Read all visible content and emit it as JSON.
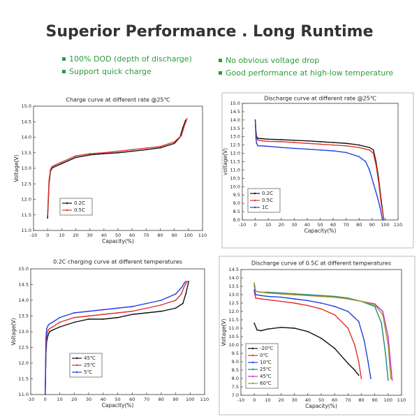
{
  "header": {
    "title": "Superior Performance . Long Runtime",
    "features": [
      "100% DOD (depth of discharge)",
      "Support quick charge",
      "No obvious voltage drop",
      "Good performance at high-low temperature"
    ]
  },
  "chart_data": [
    {
      "type": "line",
      "title": "Charge curve at different rate @25℃",
      "x_label": "Capacity(%)",
      "y_label": "Voltage(V)",
      "xlim": [
        -10,
        110
      ],
      "xticks": [
        -10,
        0,
        10,
        20,
        30,
        40,
        50,
        60,
        70,
        80,
        90,
        100,
        110
      ],
      "ylim": [
        11.0,
        15.0
      ],
      "yticks": [
        {
          "value": 11.0,
          "label": "11.0"
        },
        {
          "value": 11.5,
          "label": "11.5"
        },
        {
          "value": 12.0,
          "label": "12.0"
        },
        {
          "value": 12.5,
          "label": "12.5"
        },
        {
          "value": 13.0,
          "label": "13.0"
        },
        {
          "value": 13.5,
          "label": "13.5"
        },
        {
          "value": 14.0,
          "label": "14.0"
        },
        {
          "value": 14.5,
          "label": "14.5"
        },
        {
          "value": 15.0,
          "label": "15.0"
        }
      ],
      "series": [
        {
          "name": "0.2C",
          "color": "#111111",
          "x": [
            0,
            1,
            2,
            3,
            5,
            10,
            20,
            30,
            40,
            50,
            60,
            70,
            80,
            90,
            94,
            96,
            98
          ],
          "values": [
            11.4,
            12.5,
            12.9,
            13.0,
            13.05,
            13.15,
            13.35,
            13.43,
            13.47,
            13.5,
            13.55,
            13.6,
            13.66,
            13.8,
            14.0,
            14.3,
            14.55
          ]
        },
        {
          "name": "0.5C",
          "color": "#e0302a",
          "x": [
            0,
            1,
            2,
            3,
            5,
            10,
            20,
            30,
            40,
            50,
            60,
            70,
            80,
            90,
            95,
            97,
            99
          ],
          "values": [
            11.5,
            12.6,
            12.95,
            13.05,
            13.1,
            13.2,
            13.4,
            13.47,
            13.5,
            13.55,
            13.6,
            13.65,
            13.7,
            13.85,
            14.05,
            14.35,
            14.6
          ]
        }
      ]
    },
    {
      "type": "line",
      "title": "Discharge curve at different rate @25℃",
      "x_label": "Capacity(%)",
      "y_label": "voltage(V)",
      "xlim": [
        -10,
        110
      ],
      "xticks": [
        -10,
        0,
        10,
        20,
        30,
        40,
        50,
        60,
        70,
        80,
        90,
        100,
        110
      ],
      "ylim": [
        8.0,
        15.0
      ],
      "yticks": [
        {
          "value": 8.0,
          "label": "8.0"
        },
        {
          "value": 8.5,
          "label": "8.5"
        },
        {
          "value": 9.0,
          "label": "9.0"
        },
        {
          "value": 9.5,
          "label": "9.5"
        },
        {
          "value": 10.0,
          "label": "10.0"
        },
        {
          "value": 10.5,
          "label": "10.5"
        },
        {
          "value": 11.0,
          "label": "11.0"
        },
        {
          "value": 11.5,
          "label": "11.5"
        },
        {
          "value": 12.0,
          "label": "12.0"
        },
        {
          "value": 12.5,
          "label": "12.5"
        },
        {
          "value": 13.0,
          "label": "13.0"
        },
        {
          "value": 13.5,
          "label": "13.5"
        },
        {
          "value": 14.0,
          "label": "14.0"
        },
        {
          "value": 14.5,
          "label": "14.5"
        },
        {
          "value": 15.0,
          "label": "15.0"
        }
      ],
      "series": [
        {
          "name": "0.2C",
          "color": "#111111",
          "x": [
            0,
            0.5,
            1,
            2,
            5,
            10,
            20,
            30,
            40,
            50,
            60,
            70,
            80,
            88,
            91,
            93,
            95,
            97,
            99
          ],
          "values": [
            14.0,
            13.3,
            13.0,
            12.9,
            12.88,
            12.85,
            12.82,
            12.78,
            12.75,
            12.7,
            12.65,
            12.6,
            12.5,
            12.35,
            12.2,
            11.5,
            10.5,
            9.2,
            8.0
          ]
        },
        {
          "name": "0.5C",
          "color": "#e0302a",
          "x": [
            0,
            0.5,
            1,
            2,
            5,
            10,
            20,
            30,
            40,
            50,
            60,
            70,
            80,
            88,
            91,
            93,
            95,
            97,
            99
          ],
          "values": [
            14.0,
            13.1,
            12.9,
            12.8,
            12.75,
            12.72,
            12.7,
            12.65,
            12.6,
            12.55,
            12.5,
            12.45,
            12.35,
            12.2,
            12.0,
            11.3,
            10.3,
            9.0,
            8.0
          ]
        },
        {
          "name": "1C",
          "color": "#2040e0",
          "x": [
            0,
            0.5,
            1,
            2,
            5,
            10,
            20,
            30,
            40,
            50,
            60,
            70,
            80,
            85,
            88,
            91,
            94,
            96,
            98
          ],
          "values": [
            14.0,
            12.9,
            12.6,
            12.45,
            12.45,
            12.42,
            12.35,
            12.3,
            12.25,
            12.2,
            12.15,
            12.05,
            11.8,
            11.5,
            11.0,
            10.2,
            9.4,
            8.8,
            8.0
          ]
        }
      ]
    },
    {
      "type": "line",
      "title": "0.2C charging curve at different temperatures",
      "x_label": "Capacity(%)",
      "y_label": "Voltage(V)",
      "xlim": [
        -10,
        110
      ],
      "xticks": [
        -10,
        0,
        10,
        20,
        30,
        40,
        50,
        60,
        70,
        80,
        90,
        100,
        110
      ],
      "ylim": [
        11.0,
        15.0
      ],
      "yticks": [
        {
          "value": 11.0,
          "label": "11.0"
        },
        {
          "value": 11.5,
          "label": "11.5"
        },
        {
          "value": 12.0,
          "label": "12.0"
        },
        {
          "value": 12.5,
          "label": "12.5"
        },
        {
          "value": 13.0,
          "label": "13.0"
        },
        {
          "value": 13.5,
          "label": "13.5"
        },
        {
          "value": 14.0,
          "label": "14.0"
        },
        {
          "value": 14.5,
          "label": "14.5"
        },
        {
          "value": 15.0,
          "label": "15.0"
        }
      ],
      "series": [
        {
          "name": "45℃",
          "color": "#111111",
          "x": [
            0,
            0.5,
            1,
            2,
            3,
            5,
            10,
            20,
            30,
            40,
            50,
            60,
            70,
            80,
            90,
            95,
            97,
            99
          ],
          "values": [
            11.0,
            12.3,
            12.7,
            12.9,
            13.0,
            13.05,
            13.15,
            13.3,
            13.4,
            13.4,
            13.45,
            13.55,
            13.6,
            13.65,
            13.75,
            13.9,
            14.2,
            14.6
          ]
        },
        {
          "name": "25℃",
          "color": "#e0302a",
          "x": [
            0,
            0.5,
            1,
            2,
            3,
            5,
            10,
            20,
            30,
            40,
            50,
            60,
            70,
            80,
            90,
            94,
            96,
            98
          ],
          "values": [
            11.0,
            12.5,
            12.9,
            13.05,
            13.1,
            13.15,
            13.3,
            13.45,
            13.5,
            13.55,
            13.6,
            13.65,
            13.75,
            13.85,
            14.0,
            14.2,
            14.45,
            14.6
          ]
        },
        {
          "name": "5℃",
          "color": "#2040e0",
          "x": [
            0,
            0.5,
            1,
            2,
            3,
            5,
            10,
            20,
            30,
            40,
            50,
            60,
            70,
            80,
            90,
            94,
            96,
            97
          ],
          "values": [
            11.0,
            12.8,
            13.1,
            13.2,
            13.25,
            13.3,
            13.45,
            13.6,
            13.65,
            13.7,
            13.75,
            13.8,
            13.9,
            14.0,
            14.2,
            14.4,
            14.55,
            14.6
          ]
        }
      ]
    },
    {
      "type": "line",
      "title": "Discharge curve of 0.5C at different temperatures",
      "x_label": "Capacity(%)",
      "y_label": "Voltage(V)",
      "xlim": [
        -10,
        110
      ],
      "xticks": [
        -10,
        0,
        10,
        20,
        30,
        40,
        50,
        60,
        70,
        80,
        90,
        100,
        110
      ],
      "ylim": [
        7.0,
        14.5
      ],
      "yticks": [
        {
          "value": 7.0,
          "label": "7.0"
        },
        {
          "value": 7.5,
          "label": "7.5"
        },
        {
          "value": 8.0,
          "label": "8.0"
        },
        {
          "value": 8.5,
          "label": "8.5"
        },
        {
          "value": 9.0,
          "label": "9.0"
        },
        {
          "value": 9.5,
          "label": "9.5"
        },
        {
          "value": 10.0,
          "label": "10.0"
        },
        {
          "value": 10.5,
          "label": "10.5"
        },
        {
          "value": 11.0,
          "label": "11.0"
        },
        {
          "value": 11.5,
          "label": "11.5"
        },
        {
          "value": 12.0,
          "label": "12.0"
        },
        {
          "value": 12.5,
          "label": "12.5"
        },
        {
          "value": 13.0,
          "label": "13.0"
        },
        {
          "value": 13.5,
          "label": "13.5"
        },
        {
          "value": 14.0,
          "label": "14.0"
        },
        {
          "value": 14.5,
          "label": "14.5"
        }
      ],
      "series": [
        {
          "name": "-20℃",
          "color": "#111111",
          "x": [
            0,
            2,
            5,
            10,
            20,
            30,
            40,
            50,
            60,
            70,
            75,
            78
          ],
          "values": [
            11.3,
            10.9,
            10.85,
            10.95,
            11.05,
            11.0,
            10.8,
            10.4,
            9.8,
            8.9,
            8.5,
            8.2
          ]
        },
        {
          "name": "0℃",
          "color": "#e0302a",
          "x": [
            0,
            1,
            5,
            10,
            20,
            30,
            40,
            50,
            60,
            70,
            75,
            78,
            80
          ],
          "values": [
            13.2,
            12.8,
            12.75,
            12.7,
            12.6,
            12.5,
            12.35,
            12.15,
            11.8,
            11.0,
            10.0,
            9.0,
            8.0
          ]
        },
        {
          "name": "10℃",
          "color": "#2040e0",
          "x": [
            0,
            1,
            5,
            10,
            20,
            30,
            40,
            50,
            60,
            70,
            78,
            82,
            85,
            87
          ],
          "values": [
            13.3,
            13.0,
            12.95,
            12.9,
            12.85,
            12.75,
            12.65,
            12.5,
            12.3,
            12.0,
            11.4,
            10.3,
            9.0,
            8.0
          ]
        },
        {
          "name": "25℃",
          "color": "#1a8a7a",
          "x": [
            0,
            1,
            5,
            10,
            20,
            30,
            40,
            50,
            60,
            70,
            80,
            90,
            95,
            98,
            100
          ],
          "values": [
            13.5,
            13.2,
            13.15,
            13.15,
            13.1,
            13.05,
            13.0,
            12.95,
            12.9,
            12.8,
            12.6,
            12.3,
            11.3,
            9.5,
            7.9
          ]
        },
        {
          "name": "45℃",
          "color": "#d030d0",
          "x": [
            0,
            1,
            5,
            10,
            20,
            30,
            40,
            50,
            60,
            70,
            80,
            90,
            96,
            100,
            103
          ],
          "values": [
            13.6,
            13.2,
            13.15,
            13.1,
            13.05,
            13.0,
            12.95,
            12.9,
            12.85,
            12.75,
            12.6,
            12.45,
            12.0,
            10.5,
            7.9
          ]
        },
        {
          "name": "60℃",
          "color": "#9a9a20",
          "x": [
            0,
            1,
            5,
            10,
            20,
            30,
            40,
            50,
            60,
            70,
            80,
            90,
            96,
            100,
            102
          ],
          "values": [
            13.7,
            13.2,
            13.15,
            13.1,
            13.05,
            13.0,
            12.95,
            12.9,
            12.85,
            12.75,
            12.6,
            12.4,
            11.8,
            10.0,
            8.0
          ]
        }
      ]
    }
  ]
}
